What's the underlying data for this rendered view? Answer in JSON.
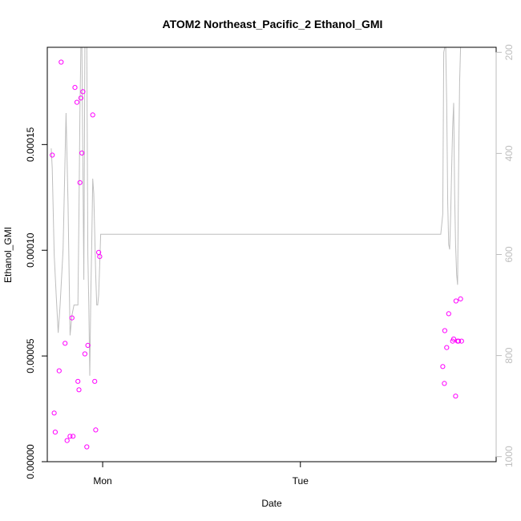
{
  "chart_data": {
    "type": "scatter",
    "title": "ATOM2 Northeast_Pacific_2 Ethanol_GMI",
    "xlabel": "Date",
    "ylabel": "Ethanol_GMI",
    "x_axis": {
      "type": "time",
      "range_days": [
        -0.28,
        1.99
      ],
      "ticks": [
        {
          "day": 0,
          "label": "Mon"
        },
        {
          "day": 1,
          "label": "Tue"
        }
      ]
    },
    "y_axis": {
      "range": [
        0,
        0.000196
      ],
      "ticks": [
        {
          "value": 0,
          "label": "0.00000"
        },
        {
          "value": 5e-05,
          "label": "0.00005"
        },
        {
          "value": 0.0001,
          "label": "0.00010"
        },
        {
          "value": 0.00015,
          "label": "0.00015"
        }
      ]
    },
    "y2_axis": {
      "reversed": true,
      "range": [
        1010,
        190
      ],
      "color": "#bebebe",
      "ticks": [
        {
          "value": 200,
          "label": "200"
        },
        {
          "value": 400,
          "label": "400"
        },
        {
          "value": 600,
          "label": "600"
        },
        {
          "value": 800,
          "label": "800"
        },
        {
          "value": 1000,
          "label": "1000"
        }
      ]
    },
    "grid": false,
    "points": {
      "color": "#ff00ff",
      "x": [
        -0.255,
        -0.245,
        -0.24,
        -0.22,
        -0.21,
        -0.19,
        -0.18,
        -0.165,
        -0.155,
        -0.15,
        -0.14,
        -0.13,
        -0.125,
        -0.12,
        -0.115,
        -0.11,
        -0.105,
        -0.1,
        -0.09,
        -0.08,
        -0.075,
        -0.05,
        -0.04,
        -0.035,
        -0.02,
        -0.015,
        1.72,
        1.728,
        1.73,
        1.74,
        1.75,
        1.77,
        1.775,
        1.785,
        1.787,
        1.795,
        1.8,
        1.81,
        1.815
      ],
      "y": [
        0.000145,
        2.3e-05,
        1.4e-05,
        4.3e-05,
        0.000189,
        5.6e-05,
        1e-05,
        1.2e-05,
        6.8e-05,
        1.2e-05,
        0.000177,
        0.00017,
        3.8e-05,
        3.4e-05,
        0.000132,
        0.000172,
        0.000146,
        0.000175,
        5.1e-05,
        7e-06,
        5.5e-05,
        0.000164,
        3.8e-05,
        1.5e-05,
        9.9e-05,
        9.7e-05,
        4.5e-05,
        3.7e-05,
        6.2e-05,
        5.4e-05,
        7e-05,
        5.7e-05,
        5.8e-05,
        3.1e-05,
        7.6e-05,
        5.7e-05,
        5.7e-05,
        7.7e-05,
        5.7e-05
      ]
    },
    "line": {
      "axis": "y2",
      "color": "#bebebe",
      "x": [
        -0.26,
        -0.255,
        -0.245,
        -0.235,
        -0.225,
        -0.215,
        -0.2,
        -0.185,
        -0.175,
        -0.165,
        -0.155,
        -0.145,
        -0.14,
        -0.135,
        -0.13,
        -0.125,
        -0.12,
        -0.115,
        -0.11,
        -0.105,
        -0.1,
        -0.095,
        -0.09,
        -0.085,
        -0.08,
        -0.075,
        -0.07,
        -0.065,
        -0.06,
        -0.055,
        -0.05,
        -0.045,
        -0.04,
        -0.035,
        -0.03,
        -0.025,
        -0.02,
        -0.015,
        -0.01,
        1.71,
        1.72,
        1.725,
        1.73,
        1.735,
        1.74,
        1.745,
        1.75,
        1.755,
        1.76,
        1.765,
        1.77,
        1.775,
        1.78,
        1.785,
        1.79,
        1.795,
        1.8,
        1.805,
        1.81
      ],
      "y": [
        390,
        430,
        600,
        680,
        755,
        700,
        590,
        320,
        500,
        760,
        720,
        700,
        700,
        700,
        700,
        700,
        520,
        320,
        190,
        190,
        420,
        650,
        190,
        190,
        190,
        600,
        700,
        840,
        680,
        575,
        450,
        480,
        560,
        640,
        700,
        700,
        680,
        620,
        560,
        560,
        520,
        200,
        190,
        190,
        300,
        500,
        580,
        590,
        520,
        430,
        350,
        300,
        480,
        580,
        640,
        660,
        440,
        260,
        190
      ]
    }
  }
}
